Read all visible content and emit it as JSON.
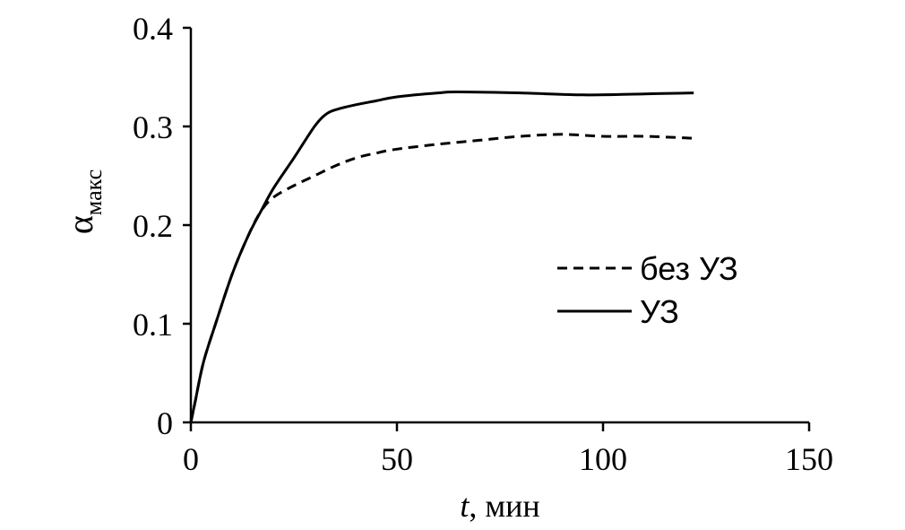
{
  "chart_data": {
    "type": "line",
    "xlabel_var": "t",
    "xlabel_unit": ", мин",
    "ylabel_main": "α",
    "ylabel_sub": "макс",
    "xlim": [
      0,
      150
    ],
    "ylim": [
      0,
      0.4
    ],
    "xticks": [
      0,
      50,
      100,
      150
    ],
    "yticks": [
      0,
      0.1,
      0.2,
      0.3,
      0.4
    ],
    "xtick_labels": [
      "0",
      "50",
      "100",
      "150"
    ],
    "ytick_labels": [
      "0",
      "0.1",
      "0.2",
      "0.3",
      "0.4"
    ],
    "grid": false,
    "legend_position": "right",
    "series": [
      {
        "name": "без УЗ",
        "style": "dashed",
        "x": [
          0,
          1,
          3,
          6,
          10,
          14,
          17,
          20,
          25,
          30,
          35,
          40,
          45,
          50,
          60,
          70,
          80,
          90,
          100,
          110,
          122
        ],
        "y": [
          0,
          0.02,
          0.06,
          0.1,
          0.15,
          0.19,
          0.214,
          0.228,
          0.24,
          0.25,
          0.26,
          0.268,
          0.273,
          0.277,
          0.282,
          0.286,
          0.29,
          0.292,
          0.29,
          0.29,
          0.288
        ]
      },
      {
        "name": "УЗ",
        "style": "solid",
        "x": [
          0,
          1,
          3,
          6,
          10,
          14,
          17,
          20,
          25,
          30,
          33,
          36,
          40,
          45,
          50,
          60,
          65,
          80,
          95,
          110,
          122
        ],
        "y": [
          0,
          0.02,
          0.06,
          0.1,
          0.15,
          0.19,
          0.214,
          0.237,
          0.268,
          0.3,
          0.313,
          0.318,
          0.322,
          0.326,
          0.33,
          0.334,
          0.335,
          0.334,
          0.332,
          0.333,
          0.334
        ]
      }
    ]
  }
}
